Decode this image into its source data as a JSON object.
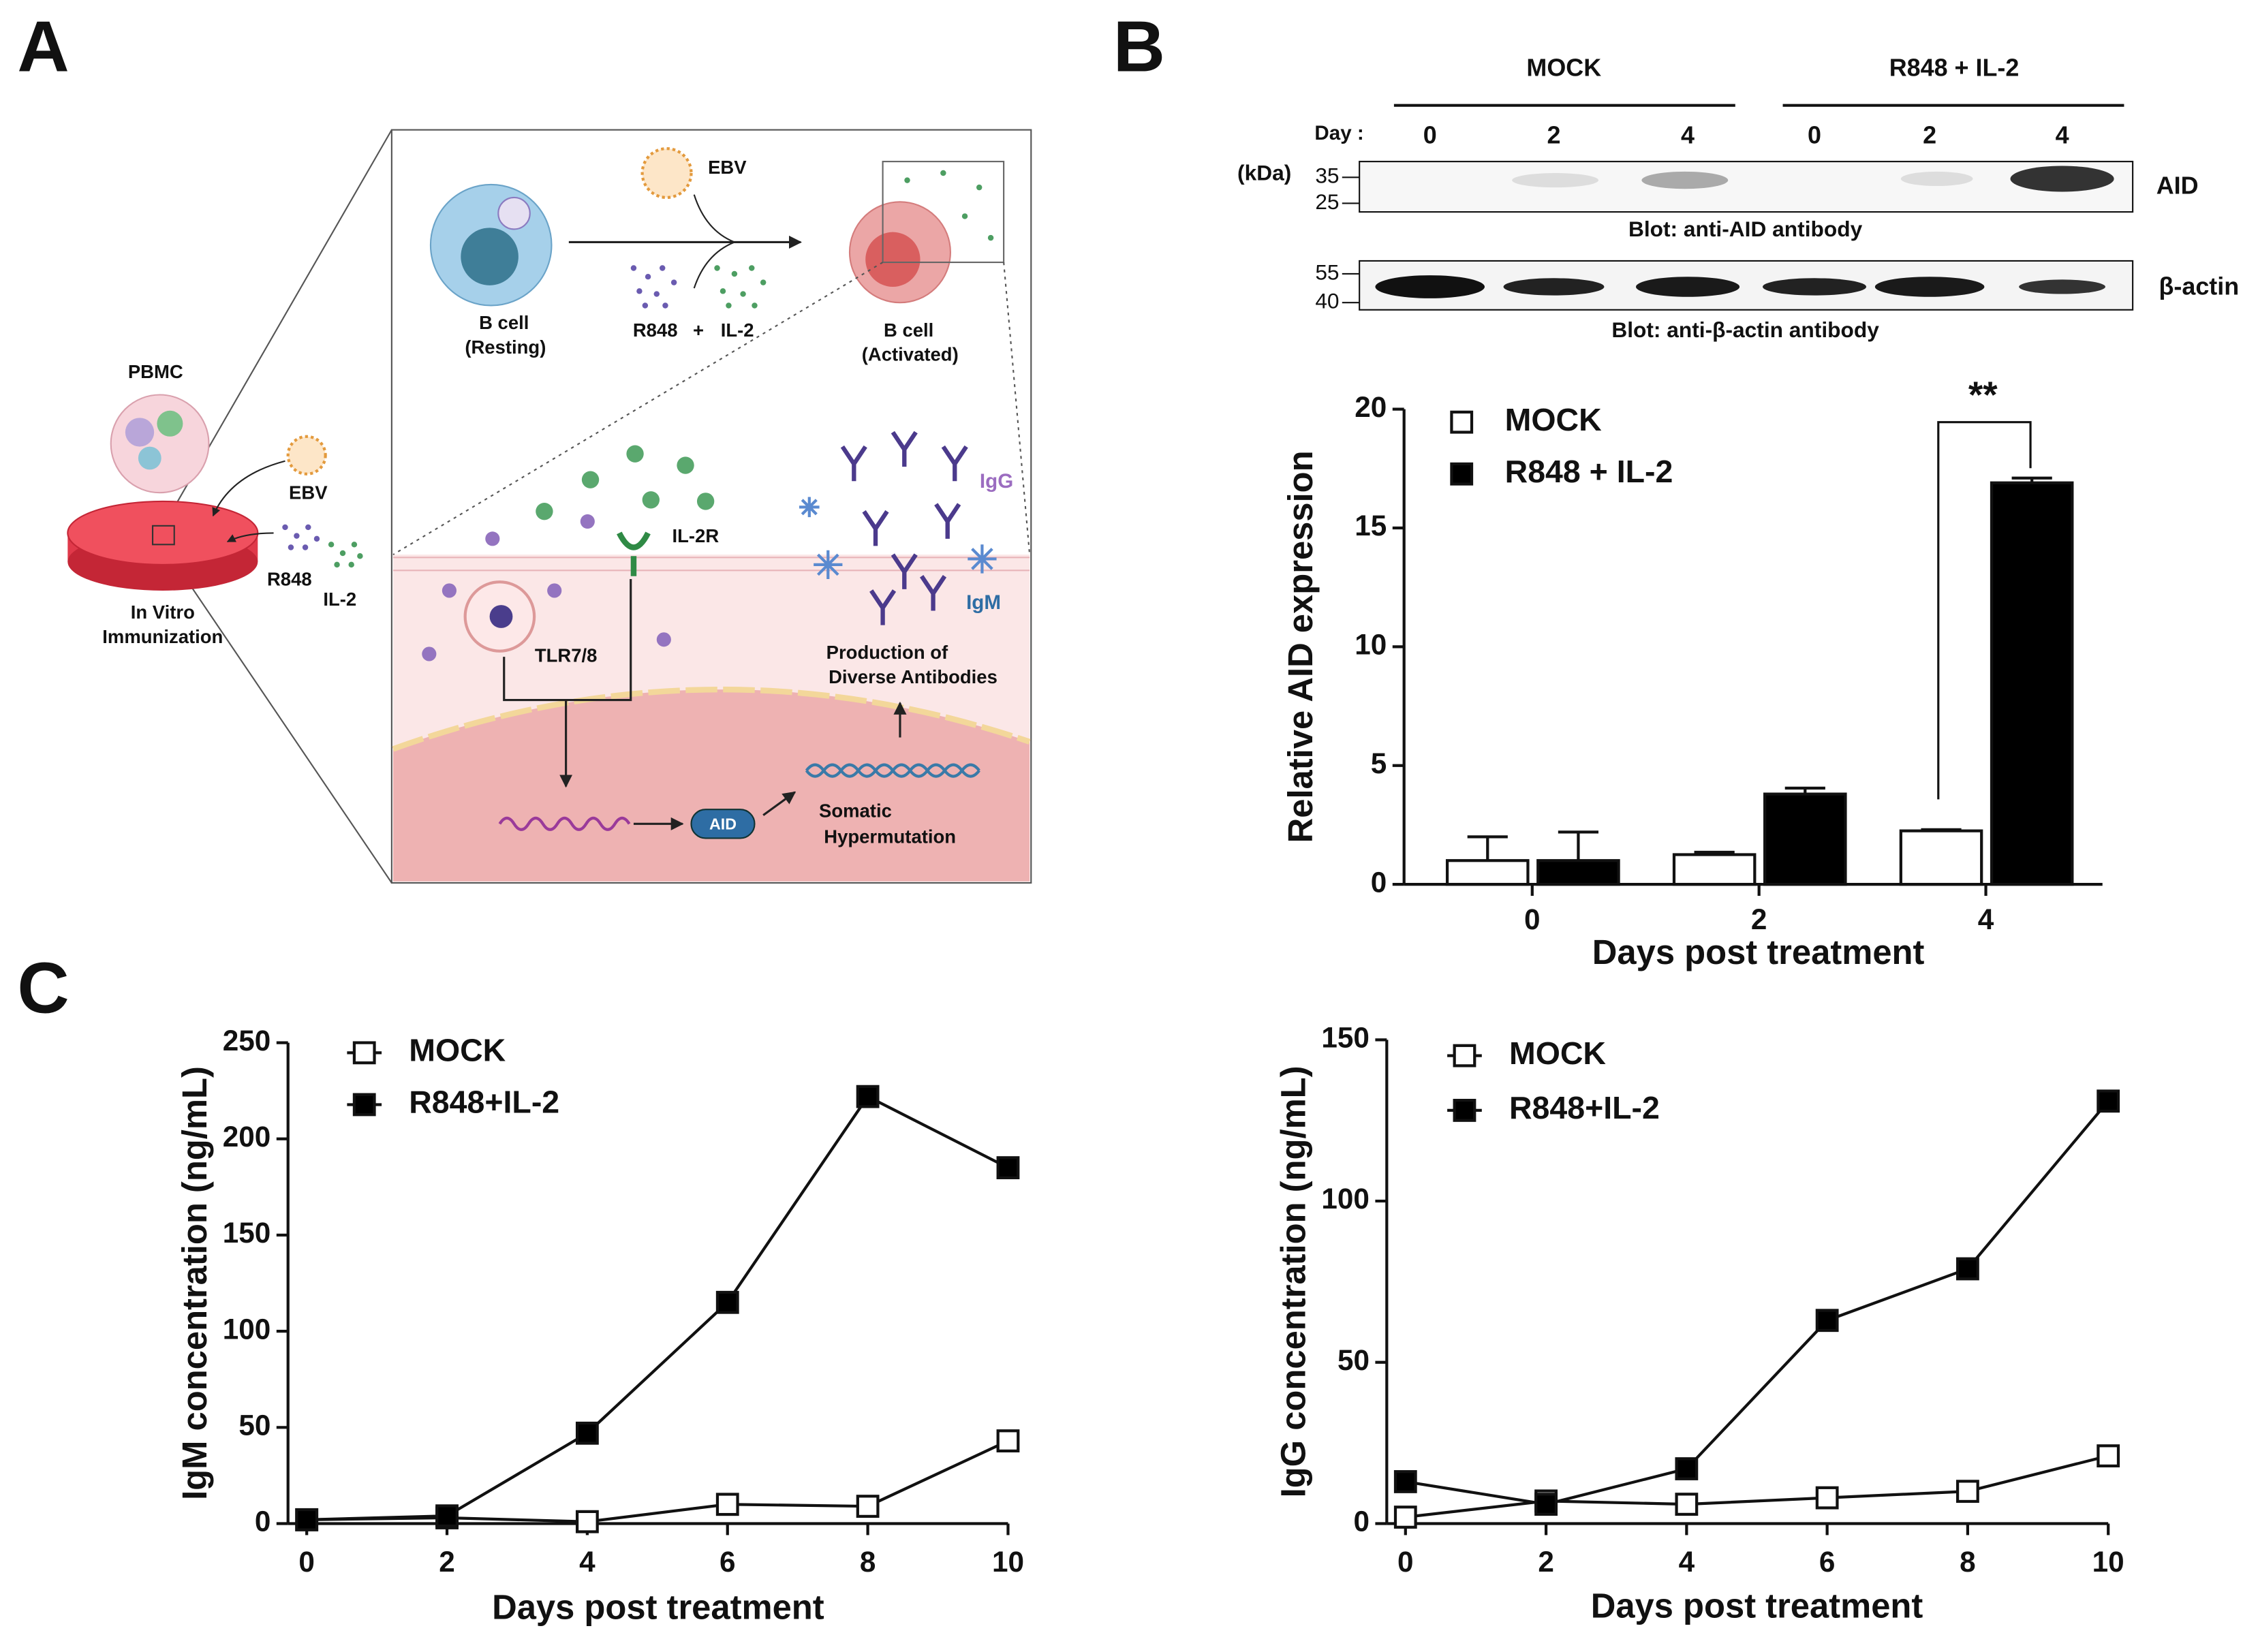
{
  "panel_labels": [
    "A",
    "B",
    "C"
  ],
  "diagram": {
    "pbmc": "PBMC",
    "ebv_dish": "EBV",
    "r848_dish": "R848",
    "il2_dish": "IL-2",
    "in_vitro": "In Vitro",
    "immunization": "Immunization",
    "resting_cell": "B cell",
    "resting": "(Resting)",
    "ebv": "EBV",
    "r848": "R848",
    "plus": "+",
    "il2": "IL-2",
    "activated_cell": "B cell",
    "activated": "(Activated)",
    "il2r": "IL-2R",
    "tlr": "TLR7/8",
    "igg": "IgG",
    "igm": "IgM",
    "production": "Production of",
    "diverse": "Diverse Antibodies",
    "aid": "AID",
    "somatic": "Somatic",
    "hypermutation": "Hypermutation"
  },
  "blot": {
    "groups": [
      "MOCK",
      "R848 + IL-2"
    ],
    "day_label": "Day :",
    "lanes": [
      "0",
      "2",
      "4",
      "0",
      "2",
      "4"
    ],
    "kda": "(kDa)",
    "aid_markers": [
      "35",
      "25"
    ],
    "actin_markers": [
      "55",
      "40"
    ],
    "aid": "AID",
    "actin": "β-actin",
    "aid_caption": "Blot: anti-AID antibody",
    "actin_caption": "Blot: anti-β-actin antibody"
  },
  "chart_data": [
    {
      "type": "bar",
      "categories": [
        "0",
        "2",
        "4"
      ],
      "xlabel": "Days post treatment",
      "ylabel": "Relative AID expression",
      "ylim": [
        0,
        20
      ],
      "yticks": [
        0,
        5,
        10,
        15,
        20
      ],
      "annotation": "**",
      "series": [
        {
          "name": "MOCK",
          "color": "#ffffff",
          "values": [
            1,
            1.25,
            2.25
          ],
          "errors": [
            1,
            0.1,
            0.05
          ]
        },
        {
          "name": "R848 + IL-2",
          "color": "#000000",
          "values": [
            1,
            3.8,
            16.9
          ],
          "errors": [
            1.2,
            0.25,
            0.2
          ]
        }
      ]
    },
    {
      "type": "line",
      "x": [
        0,
        2,
        4,
        6,
        8,
        10
      ],
      "xlabel": "Days post treatment",
      "ylabel": "IgM concentration (ng/mL)",
      "xlim": [
        0,
        10
      ],
      "xticks": [
        0,
        2,
        4,
        6,
        8,
        10
      ],
      "ylim": [
        0,
        250
      ],
      "yticks": [
        0,
        50,
        100,
        150,
        200,
        250
      ],
      "series": [
        {
          "name": "MOCK",
          "color": "#ffffff",
          "values": [
            2,
            3,
            1,
            10,
            9,
            43
          ]
        },
        {
          "name": "R848+IL-2",
          "color": "#000000",
          "values": [
            2,
            4,
            47,
            115,
            222,
            185
          ]
        }
      ]
    },
    {
      "type": "line",
      "x": [
        0,
        2,
        4,
        6,
        8,
        10
      ],
      "xlabel": "Days post treatment",
      "ylabel": "IgG concentration (ng/mL)",
      "xlim": [
        0,
        10
      ],
      "xticks": [
        0,
        2,
        4,
        6,
        8,
        10
      ],
      "ylim": [
        0,
        150
      ],
      "yticks": [
        0,
        50,
        100,
        150
      ],
      "series": [
        {
          "name": "MOCK",
          "color": "#ffffff",
          "values": [
            2,
            7,
            6,
            8,
            10,
            21
          ]
        },
        {
          "name": "R848+IL-2",
          "color": "#000000",
          "values": [
            13,
            6,
            17,
            63,
            79,
            131
          ]
        }
      ]
    }
  ]
}
